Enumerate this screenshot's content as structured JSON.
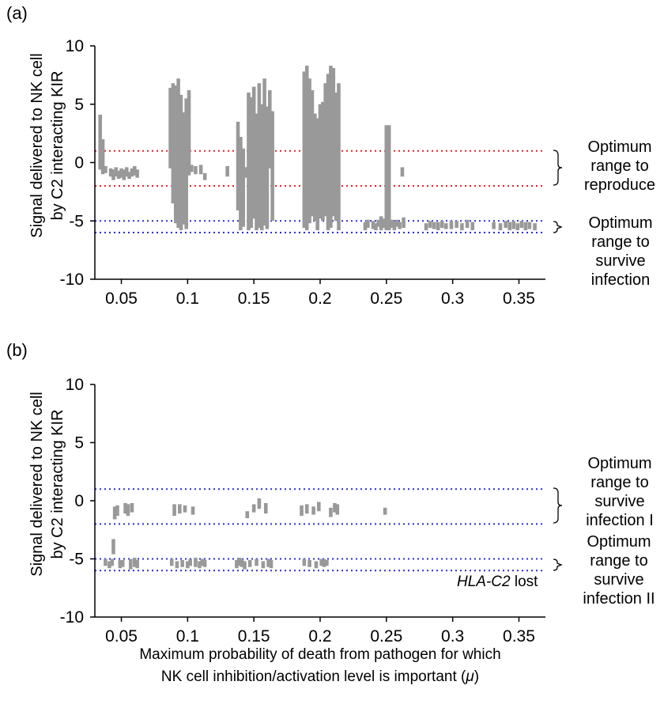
{
  "panels": {
    "a": {
      "label": "(a)",
      "ylabel_line1": "Signal delivered to NK cell",
      "ylabel_line2": "by C2 interacting KIR",
      "range_upper_label": [
        "Optimum",
        "range to",
        "reproduce"
      ],
      "range_lower_label": [
        "Optimum",
        "range to",
        "survive",
        "infection"
      ]
    },
    "b": {
      "label": "(b)",
      "ylabel_line1": "Signal delivered to NK cell",
      "ylabel_line2": "by C2 interacting KIR",
      "range_upper_label": [
        "Optimum",
        "range to",
        "survive",
        "infection I"
      ],
      "range_lower_label": [
        "Optimum",
        "range to",
        "survive",
        "infection II"
      ],
      "note_italic": "HLA-C2",
      "note_rest": " lost"
    }
  },
  "xlabel_line1": "Maximum probability of death from pathogen for which",
  "xlabel_line2_pre": "NK cell inhibition/activation level is important (",
  "xlabel_mu": "μ",
  "xlabel_line2_post": ")",
  "colors": {
    "bar": "#999999",
    "red_line": "#e8202a",
    "blue_line": "#2b2bd8"
  },
  "chart_data": [
    {
      "type": "bar",
      "title": "(a)",
      "xlabel": "Maximum probability of death from pathogen for which NK cell inhibition/activation level is important (μ)",
      "ylabel": "Signal delivered to NK cell by C2 interacting KIR",
      "xlim": [
        0.03,
        0.37
      ],
      "ylim": [
        -10,
        10
      ],
      "xticks": [
        "0.05",
        "0.1",
        "0.15",
        "0.2",
        "0.25",
        "0.3",
        "0.35"
      ],
      "xtick_values": [
        0.05,
        0.1,
        0.15,
        0.2,
        0.25,
        0.3,
        0.35
      ],
      "yticks": [
        "10",
        "5",
        "0",
        "-5",
        "-10"
      ],
      "ytick_values": [
        10,
        5,
        0,
        -5,
        -10
      ],
      "reference_lines": [
        {
          "y": 1,
          "color": "red",
          "style": "dotted"
        },
        {
          "y": -2,
          "color": "red",
          "style": "dotted"
        },
        {
          "y": -5,
          "color": "blue",
          "style": "dotted"
        },
        {
          "y": -6,
          "color": "blue",
          "style": "dotted"
        }
      ],
      "ranges": [
        {
          "x": 0.034,
          "lo": -0.6,
          "hi": 4.1
        },
        {
          "x": 0.036,
          "lo": -1.0,
          "hi": 2.0
        },
        {
          "x": 0.038,
          "lo": -0.9,
          "hi": -0.3
        },
        {
          "x": 0.042,
          "lo": -1.2,
          "hi": -0.5
        },
        {
          "x": 0.044,
          "lo": -1.5,
          "hi": -0.6
        },
        {
          "x": 0.046,
          "lo": -1.2,
          "hi": -0.4
        },
        {
          "x": 0.048,
          "lo": -1.4,
          "hi": -0.7
        },
        {
          "x": 0.05,
          "lo": -1.3,
          "hi": -0.5
        },
        {
          "x": 0.052,
          "lo": -1.5,
          "hi": -0.6
        },
        {
          "x": 0.054,
          "lo": -1.2,
          "hi": -0.4
        },
        {
          "x": 0.056,
          "lo": -1.4,
          "hi": -0.8
        },
        {
          "x": 0.058,
          "lo": -1.2,
          "hi": -0.5
        },
        {
          "x": 0.06,
          "lo": -1.1,
          "hi": -0.3
        },
        {
          "x": 0.062,
          "lo": -1.3,
          "hi": -0.6
        },
        {
          "x": 0.087,
          "lo": -0.5,
          "hi": 6.4
        },
        {
          "x": 0.089,
          "lo": -3.5,
          "hi": 6.8
        },
        {
          "x": 0.091,
          "lo": -5.2,
          "hi": 6.6
        },
        {
          "x": 0.093,
          "lo": -5.6,
          "hi": 7.2
        },
        {
          "x": 0.095,
          "lo": -5.8,
          "hi": 5.8
        },
        {
          "x": 0.097,
          "lo": -5.3,
          "hi": 4.3
        },
        {
          "x": 0.099,
          "lo": -5.7,
          "hi": 5.5
        },
        {
          "x": 0.101,
          "lo": -1.1,
          "hi": 6.2
        },
        {
          "x": 0.103,
          "lo": -0.8,
          "hi": -0.2
        },
        {
          "x": 0.106,
          "lo": -1.0,
          "hi": -0.3
        },
        {
          "x": 0.11,
          "lo": -1.0,
          "hi": -0.2
        },
        {
          "x": 0.113,
          "lo": -1.5,
          "hi": -0.9
        },
        {
          "x": 0.13,
          "lo": -1.2,
          "hi": -0.3
        },
        {
          "x": 0.138,
          "lo": -4.1,
          "hi": 3.5
        },
        {
          "x": 0.14,
          "lo": -5.8,
          "hi": 2.2
        },
        {
          "x": 0.142,
          "lo": -5.5,
          "hi": 1.2
        },
        {
          "x": 0.144,
          "lo": -1.3,
          "hi": -0.4
        },
        {
          "x": 0.146,
          "lo": -5.8,
          "hi": 6.0
        },
        {
          "x": 0.148,
          "lo": -5.6,
          "hi": 5.6
        },
        {
          "x": 0.15,
          "lo": -4.8,
          "hi": 6.5
        },
        {
          "x": 0.152,
          "lo": -5.8,
          "hi": 4.2
        },
        {
          "x": 0.154,
          "lo": -5.6,
          "hi": 6.8
        },
        {
          "x": 0.156,
          "lo": -5.8,
          "hi": 5.0
        },
        {
          "x": 0.158,
          "lo": -5.4,
          "hi": 7.2
        },
        {
          "x": 0.16,
          "lo": -5.7,
          "hi": 4.8
        },
        {
          "x": 0.162,
          "lo": -0.5,
          "hi": 6.2
        },
        {
          "x": 0.164,
          "lo": -5.0,
          "hi": 4.4
        },
        {
          "x": 0.188,
          "lo": -5.6,
          "hi": 7.8
        },
        {
          "x": 0.19,
          "lo": -5.8,
          "hi": 8.3
        },
        {
          "x": 0.192,
          "lo": -5.2,
          "hi": 7.2
        },
        {
          "x": 0.194,
          "lo": -4.6,
          "hi": 6.2
        },
        {
          "x": 0.196,
          "lo": -5.0,
          "hi": 4.2
        },
        {
          "x": 0.198,
          "lo": -5.8,
          "hi": 3.8
        },
        {
          "x": 0.2,
          "lo": -4.8,
          "hi": 5.0
        },
        {
          "x": 0.202,
          "lo": -5.0,
          "hi": 5.2
        },
        {
          "x": 0.204,
          "lo": -4.6,
          "hi": 6.8
        },
        {
          "x": 0.206,
          "lo": -5.8,
          "hi": 7.6
        },
        {
          "x": 0.208,
          "lo": -5.6,
          "hi": 8.3
        },
        {
          "x": 0.21,
          "lo": -4.6,
          "hi": 8.1
        },
        {
          "x": 0.212,
          "lo": -5.0,
          "hi": 6.0
        },
        {
          "x": 0.214,
          "lo": -5.8,
          "hi": 6.8
        },
        {
          "x": 0.234,
          "lo": -5.8,
          "hi": -5.1
        },
        {
          "x": 0.236,
          "lo": -5.6,
          "hi": -4.9
        },
        {
          "x": 0.24,
          "lo": -5.7,
          "hi": -5.0
        },
        {
          "x": 0.242,
          "lo": -5.8,
          "hi": -5.2
        },
        {
          "x": 0.244,
          "lo": -5.5,
          "hi": -4.9
        },
        {
          "x": 0.246,
          "lo": -5.8,
          "hi": -4.6
        },
        {
          "x": 0.248,
          "lo": -5.6,
          "hi": -4.8
        },
        {
          "x": 0.25,
          "lo": -5.8,
          "hi": 3.2
        },
        {
          "x": 0.252,
          "lo": -5.8,
          "hi": 3.2
        },
        {
          "x": 0.254,
          "lo": -5.6,
          "hi": -4.9
        },
        {
          "x": 0.256,
          "lo": -5.8,
          "hi": -5.0
        },
        {
          "x": 0.258,
          "lo": -5.5,
          "hi": -4.9
        },
        {
          "x": 0.26,
          "lo": -5.7,
          "hi": -5.1
        },
        {
          "x": 0.262,
          "lo": -1.2,
          "hi": -0.4
        },
        {
          "x": 0.263,
          "lo": -5.6,
          "hi": -4.7
        },
        {
          "x": 0.28,
          "lo": -5.8,
          "hi": -5.2
        },
        {
          "x": 0.283,
          "lo": -5.6,
          "hi": -5.0
        },
        {
          "x": 0.286,
          "lo": -5.7,
          "hi": -5.1
        },
        {
          "x": 0.289,
          "lo": -5.8,
          "hi": -5.1
        },
        {
          "x": 0.292,
          "lo": -5.6,
          "hi": -5.0
        },
        {
          "x": 0.295,
          "lo": -5.7,
          "hi": -5.2
        },
        {
          "x": 0.299,
          "lo": -5.7,
          "hi": -5.0
        },
        {
          "x": 0.303,
          "lo": -5.6,
          "hi": -5.0
        },
        {
          "x": 0.307,
          "lo": -5.8,
          "hi": -5.2
        },
        {
          "x": 0.311,
          "lo": -5.6,
          "hi": -4.9
        },
        {
          "x": 0.315,
          "lo": -5.8,
          "hi": -5.1
        },
        {
          "x": 0.331,
          "lo": -5.7,
          "hi": -5.1
        },
        {
          "x": 0.336,
          "lo": -5.8,
          "hi": -5.2
        },
        {
          "x": 0.34,
          "lo": -5.6,
          "hi": -5.0
        },
        {
          "x": 0.343,
          "lo": -5.8,
          "hi": -5.1
        },
        {
          "x": 0.346,
          "lo": -5.7,
          "hi": -5.0
        },
        {
          "x": 0.349,
          "lo": -5.8,
          "hi": -5.2
        },
        {
          "x": 0.352,
          "lo": -5.6,
          "hi": -5.0
        },
        {
          "x": 0.355,
          "lo": -5.8,
          "hi": -5.1
        },
        {
          "x": 0.358,
          "lo": -5.7,
          "hi": -5.1
        },
        {
          "x": 0.362,
          "lo": -5.8,
          "hi": -5.2
        }
      ]
    },
    {
      "type": "bar",
      "title": "(b)",
      "xlabel": "Maximum probability of death from pathogen for which NK cell inhibition/activation level is important (μ)",
      "ylabel": "Signal delivered to NK cell by C2 interacting KIR",
      "annotation": "HLA-C2 lost",
      "xlim": [
        0.03,
        0.37
      ],
      "ylim": [
        -10,
        10
      ],
      "xticks": [
        "0.05",
        "0.1",
        "0.15",
        "0.2",
        "0.25",
        "0.3",
        "0.35"
      ],
      "xtick_values": [
        0.05,
        0.1,
        0.15,
        0.2,
        0.25,
        0.3,
        0.35
      ],
      "yticks": [
        "10",
        "5",
        "0",
        "-5",
        "-10"
      ],
      "ytick_values": [
        10,
        5,
        0,
        -5,
        -10
      ],
      "reference_lines": [
        {
          "y": 1,
          "color": "blue",
          "style": "dotted"
        },
        {
          "y": -2,
          "color": "blue",
          "style": "dotted"
        },
        {
          "y": -5,
          "color": "blue",
          "style": "dotted"
        },
        {
          "y": -6,
          "color": "blue",
          "style": "dotted"
        }
      ],
      "ranges": [
        {
          "x": 0.038,
          "lo": -5.6,
          "hi": -5.0
        },
        {
          "x": 0.041,
          "lo": -5.8,
          "hi": -5.2
        },
        {
          "x": 0.043,
          "lo": -5.6,
          "hi": -5.0
        },
        {
          "x": 0.044,
          "lo": -4.6,
          "hi": -3.3
        },
        {
          "x": 0.045,
          "lo": -1.6,
          "hi": -0.5
        },
        {
          "x": 0.047,
          "lo": -1.3,
          "hi": -0.4
        },
        {
          "x": 0.049,
          "lo": -5.8,
          "hi": -5.1
        },
        {
          "x": 0.051,
          "lo": -5.7,
          "hi": -5.1
        },
        {
          "x": 0.053,
          "lo": -1.1,
          "hi": -0.2
        },
        {
          "x": 0.055,
          "lo": -1.3,
          "hi": -0.3
        },
        {
          "x": 0.057,
          "lo": -5.9,
          "hi": -5.0
        },
        {
          "x": 0.058,
          "lo": -1.0,
          "hi": -0.2
        },
        {
          "x": 0.06,
          "lo": -5.7,
          "hi": -4.9
        },
        {
          "x": 0.062,
          "lo": -5.8,
          "hi": -5.1
        },
        {
          "x": 0.088,
          "lo": -5.6,
          "hi": -5.0
        },
        {
          "x": 0.09,
          "lo": -1.3,
          "hi": -0.3
        },
        {
          "x": 0.092,
          "lo": -5.8,
          "hi": -5.2
        },
        {
          "x": 0.094,
          "lo": -1.1,
          "hi": -0.3
        },
        {
          "x": 0.096,
          "lo": -5.7,
          "hi": -5.1
        },
        {
          "x": 0.098,
          "lo": -1.0,
          "hi": -0.4
        },
        {
          "x": 0.1,
          "lo": -5.8,
          "hi": -5.2
        },
        {
          "x": 0.102,
          "lo": -5.6,
          "hi": -5.0
        },
        {
          "x": 0.104,
          "lo": -1.2,
          "hi": -0.5
        },
        {
          "x": 0.106,
          "lo": -5.7,
          "hi": -4.9
        },
        {
          "x": 0.109,
          "lo": -5.8,
          "hi": -5.2
        },
        {
          "x": 0.111,
          "lo": -5.6,
          "hi": -5.0
        },
        {
          "x": 0.113,
          "lo": -5.7,
          "hi": -5.1
        },
        {
          "x": 0.137,
          "lo": -5.8,
          "hi": -5.1
        },
        {
          "x": 0.139,
          "lo": -5.6,
          "hi": -4.9
        },
        {
          "x": 0.141,
          "lo": -5.7,
          "hi": -5.0
        },
        {
          "x": 0.143,
          "lo": -5.9,
          "hi": -5.2
        },
        {
          "x": 0.145,
          "lo": -1.5,
          "hi": -0.9
        },
        {
          "x": 0.147,
          "lo": -5.7,
          "hi": -5.1
        },
        {
          "x": 0.15,
          "lo": -1.0,
          "hi": -0.3
        },
        {
          "x": 0.152,
          "lo": -5.6,
          "hi": -5.0
        },
        {
          "x": 0.154,
          "lo": -0.7,
          "hi": 0.2
        },
        {
          "x": 0.157,
          "lo": -5.8,
          "hi": -5.2
        },
        {
          "x": 0.159,
          "lo": -1.1,
          "hi": -0.2
        },
        {
          "x": 0.161,
          "lo": -5.7,
          "hi": -5.0
        },
        {
          "x": 0.163,
          "lo": -5.8,
          "hi": -5.1
        },
        {
          "x": 0.186,
          "lo": -1.3,
          "hi": -0.4
        },
        {
          "x": 0.188,
          "lo": -5.6,
          "hi": -5.0
        },
        {
          "x": 0.19,
          "lo": -1.1,
          "hi": -0.3
        },
        {
          "x": 0.192,
          "lo": -5.7,
          "hi": -5.1
        },
        {
          "x": 0.195,
          "lo": -1.2,
          "hi": -0.5
        },
        {
          "x": 0.197,
          "lo": -5.8,
          "hi": -5.2
        },
        {
          "x": 0.199,
          "lo": -0.9,
          "hi": -0.1
        },
        {
          "x": 0.201,
          "lo": -5.6,
          "hi": -5.0
        },
        {
          "x": 0.203,
          "lo": -5.7,
          "hi": -5.0
        },
        {
          "x": 0.205,
          "lo": -5.6,
          "hi": -5.1
        },
        {
          "x": 0.208,
          "lo": -1.4,
          "hi": -0.6
        },
        {
          "x": 0.211,
          "lo": -1.0,
          "hi": -0.2
        },
        {
          "x": 0.213,
          "lo": -1.2,
          "hi": -0.3
        },
        {
          "x": 0.249,
          "lo": -1.2,
          "hi": -0.6
        }
      ]
    }
  ]
}
